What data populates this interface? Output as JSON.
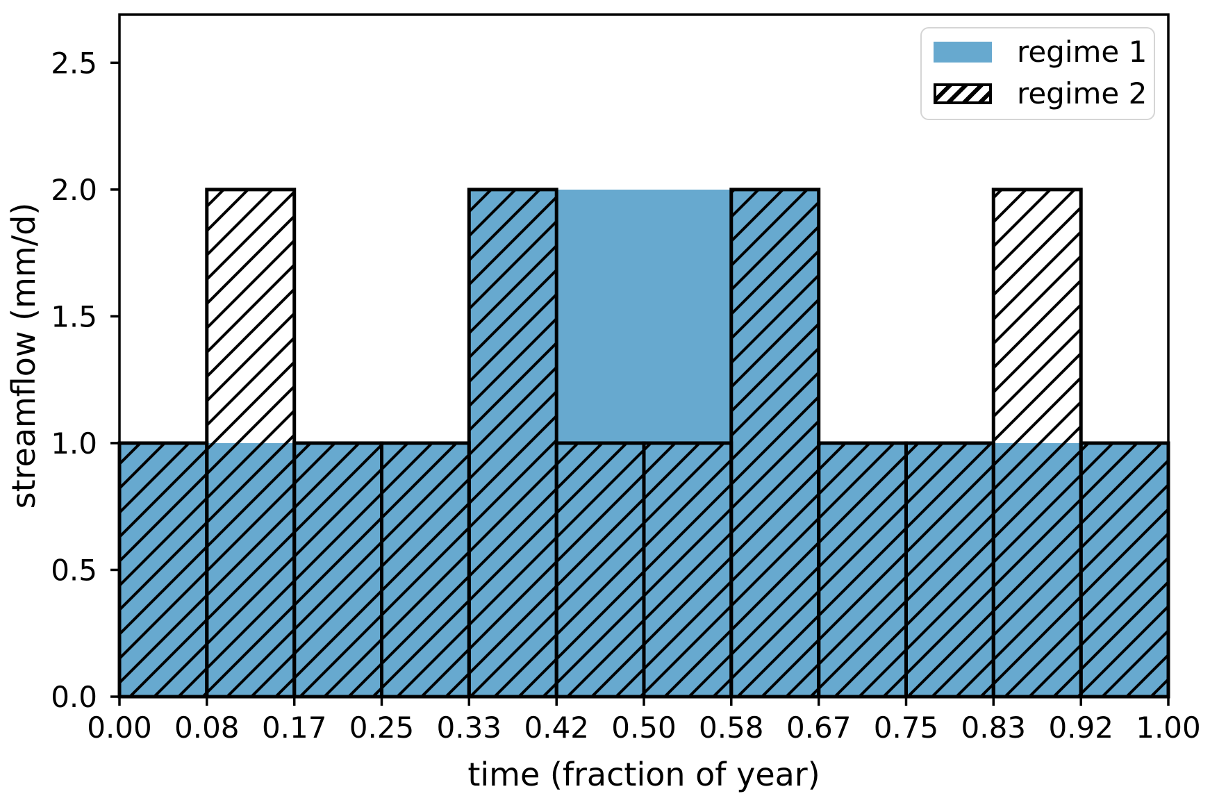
{
  "chart_data": {
    "type": "bar",
    "title": "",
    "xlabel": "time (fraction of year)",
    "ylabel": "streamflow (mm/d)",
    "xlim": [
      0,
      1
    ],
    "ylim": [
      0,
      2.69
    ],
    "grid": false,
    "bin_edges": [
      0,
      0.0833,
      0.1667,
      0.25,
      0.3333,
      0.4167,
      0.5,
      0.5833,
      0.6667,
      0.75,
      0.8333,
      0.9167,
      1.0
    ],
    "x_tick_labels": [
      "0.00",
      "0.08",
      "0.17",
      "0.25",
      "0.33",
      "0.42",
      "0.50",
      "0.58",
      "0.67",
      "0.75",
      "0.83",
      "0.92",
      "1.00"
    ],
    "y_ticks": [
      0,
      0.5,
      1,
      1.5,
      2,
      2.5
    ],
    "y_tick_labels": [
      "0.0",
      "0.5",
      "1.0",
      "1.5",
      "2.0",
      "2.5"
    ],
    "series": [
      {
        "name": "regime 1",
        "style": "solid",
        "values": [
          1,
          1,
          1,
          1,
          2,
          2,
          2,
          2,
          1,
          1,
          1,
          1
        ]
      },
      {
        "name": "regime 2",
        "style": "hatched",
        "values": [
          1,
          2,
          1,
          1,
          2,
          1,
          1,
          2,
          1,
          1,
          2,
          1
        ]
      }
    ],
    "legend": {
      "position": "upper right",
      "entries": [
        "regime 1",
        "regime 2"
      ]
    }
  },
  "colors": {
    "bar_fill": "#67a9cf",
    "edge": "#000000",
    "hatch": "#000000",
    "spine": "#000000",
    "text": "#000000",
    "legend_border": "#d5d5d5",
    "background": "#ffffff"
  }
}
